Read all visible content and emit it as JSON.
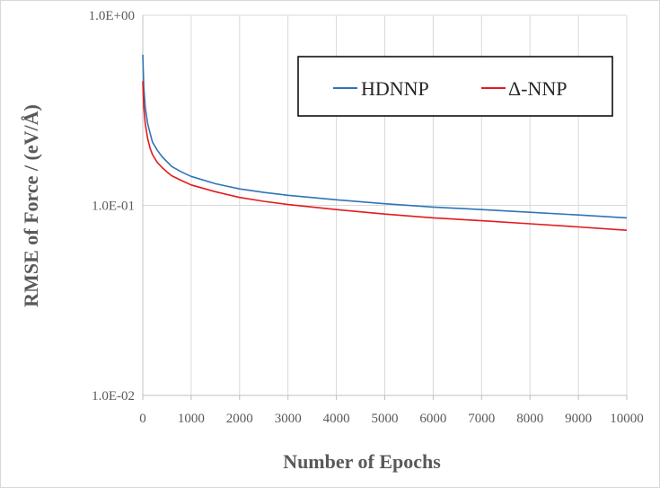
{
  "chart_data": {
    "type": "line",
    "title": "",
    "xlabel": "Number of Epochs",
    "ylabel": "RMSE of Force / (eV/Å)",
    "xlim": [
      0,
      10000
    ],
    "ylim": [
      0.01,
      1.0
    ],
    "yscale": "log",
    "grid": true,
    "legend_position": "top-right",
    "x_ticks": [
      "0",
      "1000",
      "2000",
      "3000",
      "4000",
      "5000",
      "6000",
      "7000",
      "8000",
      "9000",
      "10000"
    ],
    "y_ticks": [
      "1.0E-02",
      "1.0E-01",
      "1.0E+00"
    ],
    "series": [
      {
        "name": "HDNNP",
        "color": "#2e75b6",
        "x": [
          0,
          20,
          50,
          100,
          150,
          200,
          300,
          400,
          500,
          600,
          800,
          1000,
          1500,
          2000,
          2500,
          3000,
          4000,
          5000,
          6000,
          7000,
          8000,
          9000,
          10000
        ],
        "y": [
          0.62,
          0.42,
          0.33,
          0.27,
          0.24,
          0.215,
          0.195,
          0.18,
          0.17,
          0.16,
          0.15,
          0.142,
          0.13,
          0.122,
          0.117,
          0.113,
          0.107,
          0.102,
          0.098,
          0.095,
          0.092,
          0.089,
          0.086
        ]
      },
      {
        "name": "Δ-NNP",
        "color": "#e31a1c",
        "x": [
          0,
          20,
          50,
          100,
          150,
          200,
          300,
          400,
          500,
          600,
          800,
          1000,
          1500,
          2000,
          2500,
          3000,
          4000,
          5000,
          6000,
          7000,
          8000,
          9000,
          10000
        ],
        "y": [
          0.45,
          0.33,
          0.27,
          0.225,
          0.2,
          0.185,
          0.168,
          0.158,
          0.15,
          0.143,
          0.135,
          0.128,
          0.118,
          0.11,
          0.105,
          0.101,
          0.095,
          0.09,
          0.086,
          0.083,
          0.08,
          0.077,
          0.074
        ]
      }
    ]
  }
}
